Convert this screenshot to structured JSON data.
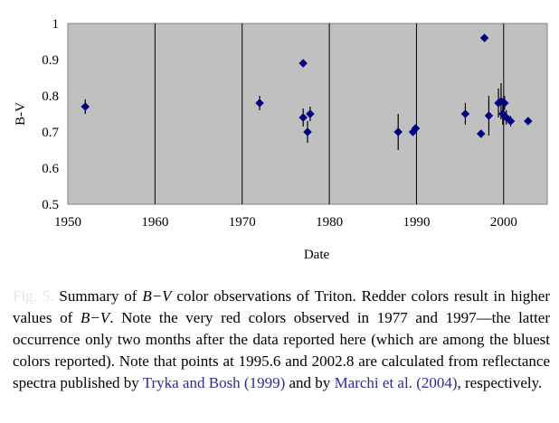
{
  "chart_data": {
    "type": "scatter",
    "title": "",
    "xlabel": "Date",
    "ylabel": "B-V",
    "xlim": [
      1950,
      2005
    ],
    "ylim": [
      0.5,
      1.0
    ],
    "x_ticks": [
      1950,
      1960,
      1970,
      1980,
      1990,
      2000
    ],
    "y_ticks": [
      0.5,
      0.6,
      0.7,
      0.8,
      0.9,
      1.0
    ],
    "x_tick_labels": [
      "1950",
      "1960",
      "1970",
      "1980",
      "1990",
      "2000"
    ],
    "y_tick_labels": [
      "0.5",
      "0.6",
      "0.7",
      "0.8",
      "0.9",
      "1"
    ],
    "grid": "vertical",
    "background": "#c0c0c0",
    "marker_color": "#000080",
    "points": [
      {
        "x": 1952.0,
        "y": 0.77,
        "err": 0.02
      },
      {
        "x": 1972.0,
        "y": 0.78,
        "err": 0.02
      },
      {
        "x": 1977.0,
        "y": 0.89,
        "err": 0
      },
      {
        "x": 1977.0,
        "y": 0.74,
        "err": 0.025
      },
      {
        "x": 1977.5,
        "y": 0.7,
        "err": 0.03
      },
      {
        "x": 1977.8,
        "y": 0.75,
        "err": 0.02
      },
      {
        "x": 1987.9,
        "y": 0.7,
        "err": 0.05
      },
      {
        "x": 1989.6,
        "y": 0.7,
        "err": 0.01
      },
      {
        "x": 1989.9,
        "y": 0.71,
        "err": 0.01
      },
      {
        "x": 1995.6,
        "y": 0.75,
        "err": 0.03
      },
      {
        "x": 1997.4,
        "y": 0.695,
        "err": 0.01
      },
      {
        "x": 1997.8,
        "y": 0.96,
        "err": 0
      },
      {
        "x": 1998.3,
        "y": 0.745,
        "err": 0.055
      },
      {
        "x": 1999.4,
        "y": 0.78,
        "err": 0.04
      },
      {
        "x": 1999.7,
        "y": 0.785,
        "err": 0.05
      },
      {
        "x": 1999.9,
        "y": 0.75,
        "err": 0.03
      },
      {
        "x": 2000.1,
        "y": 0.78,
        "err": 0.02
      },
      {
        "x": 2000.3,
        "y": 0.74,
        "err": 0.02
      },
      {
        "x": 2000.8,
        "y": 0.73,
        "err": 0.015
      },
      {
        "x": 2002.8,
        "y": 0.73,
        "err": 0
      }
    ]
  },
  "caption": {
    "label": "Fig. 5.",
    "t1": "Summary of ",
    "bv1": "B−V",
    "t2": " color observations of Triton. Redder colors result in higher values of ",
    "bv2": "B−V",
    "t3": ". Note the very red colors observed in 1977 and 1997—the latter occurrence only two months after the data reported here (which are among the bluest colors reported). Note that points at 1995.6 and 2002.8 are calculated from reflectance spectra published by ",
    "ref1": "Tryka and Bosh (1999)",
    "t4": " and by ",
    "ref2": "Marchi et al. (2004)",
    "t5": ", respectively."
  }
}
